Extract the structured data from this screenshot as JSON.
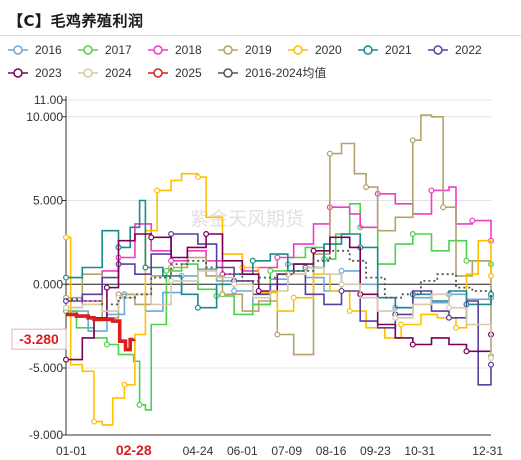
{
  "title": "【C】毛鸡养殖利润",
  "watermark": "紫金天风期货",
  "colors": {
    "2016": "#6fa8dc",
    "2017": "#4fd04f",
    "2018": "#f03cc4",
    "2019": "#b3a36b",
    "2020": "#ffc000",
    "2021": "#1b8a8a",
    "2022": "#5b3fa0",
    "2023": "#7a0058",
    "2024": "#d6c9a6",
    "2025": "#d81e1e",
    "2016-2024均值": "#555555"
  },
  "chart_data": {
    "type": "line",
    "title": "【C】毛鸡养殖利润",
    "xlabel": "",
    "ylabel": "",
    "x_range": [
      "01-01",
      "12-31"
    ],
    "x_ticks": [
      "01-01",
      "02-28",
      "04-24",
      "06-01",
      "07-09",
      "08-16",
      "09-23",
      "10-31",
      "12-31"
    ],
    "ylim": [
      -9,
      11
    ],
    "y_ticks": [
      11.0,
      10.0,
      5.0,
      0.0,
      -5.0,
      -9.0
    ],
    "y_tick_labels": [
      "11.00",
      "10.000",
      "5.000",
      "0.000",
      "-5.000",
      "-9.000"
    ],
    "grid": "horizontal",
    "legend_position": "top",
    "legend": [
      "2016",
      "2017",
      "2018",
      "2019",
      "2020",
      "2021",
      "2022",
      "2023",
      "2024",
      "2025",
      "2016-2024均值"
    ],
    "highlight_x_label": "02-28",
    "highlight_y_label": "-3.280",
    "series": [
      {
        "name": "2016",
        "style": "solid",
        "points": [
          [
            "01-01",
            -1.6
          ],
          [
            "01-20",
            -2.8
          ],
          [
            "02-05",
            -1.8
          ],
          [
            "02-20",
            -0.6
          ],
          [
            "03-10",
            -1.6
          ],
          [
            "03-25",
            -0.5
          ],
          [
            "04-10",
            0.5
          ],
          [
            "04-24",
            0.9
          ],
          [
            "05-10",
            0.2
          ],
          [
            "05-25",
            -0.4
          ],
          [
            "06-10",
            -1.2
          ],
          [
            "06-25",
            0.3
          ],
          [
            "07-10",
            1.2
          ],
          [
            "07-25",
            0.4
          ],
          [
            "08-10",
            -0.4
          ],
          [
            "08-25",
            0.8
          ],
          [
            "09-10",
            0.0
          ],
          [
            "09-25",
            -0.8
          ],
          [
            "10-10",
            -1.4
          ],
          [
            "10-25",
            -0.8
          ],
          [
            "11-10",
            -1.1
          ],
          [
            "11-25",
            -0.6
          ],
          [
            "12-10",
            -0.9
          ],
          [
            "12-31",
            -0.8
          ]
        ]
      },
      {
        "name": "2017",
        "style": "solid",
        "points": [
          [
            "01-01",
            -1.6
          ],
          [
            "01-10",
            -2.6
          ],
          [
            "01-25",
            -3.2
          ],
          [
            "02-05",
            -3.6
          ],
          [
            "02-15",
            -4.2
          ],
          [
            "02-28",
            -4.6
          ],
          [
            "03-05",
            -7.2
          ],
          [
            "03-10",
            -7.5
          ],
          [
            "03-15",
            -2.4
          ],
          [
            "03-28",
            0.8
          ],
          [
            "04-10",
            1.2
          ],
          [
            "04-24",
            -0.3
          ],
          [
            "05-10",
            -0.7
          ],
          [
            "05-25",
            -1.8
          ],
          [
            "06-10",
            -1.2
          ],
          [
            "06-25",
            0.8
          ],
          [
            "07-10",
            1.6
          ],
          [
            "07-25",
            2.2
          ],
          [
            "08-10",
            1.5
          ],
          [
            "08-20",
            3.0
          ],
          [
            "09-01",
            4.8
          ],
          [
            "09-10",
            3.4
          ],
          [
            "09-25",
            1.2
          ],
          [
            "10-10",
            2.4
          ],
          [
            "10-25",
            3.0
          ],
          [
            "11-10",
            2.0
          ],
          [
            "11-25",
            2.6
          ],
          [
            "12-10",
            1.4
          ],
          [
            "12-31",
            1.2
          ]
        ]
      },
      {
        "name": "2018",
        "style": "solid",
        "points": [
          [
            "01-01",
            -1.4
          ],
          [
            "01-15",
            -1.0
          ],
          [
            "02-01",
            0.8
          ],
          [
            "02-15",
            1.6
          ],
          [
            "03-01",
            3.6
          ],
          [
            "03-15",
            2.0
          ],
          [
            "04-01",
            1.4
          ],
          [
            "04-15",
            2.0
          ],
          [
            "05-01",
            1.4
          ],
          [
            "05-15",
            0.6
          ],
          [
            "06-01",
            0.8
          ],
          [
            "06-15",
            1.0
          ],
          [
            "07-01",
            1.6
          ],
          [
            "07-15",
            2.4
          ],
          [
            "08-01",
            3.6
          ],
          [
            "08-15",
            4.6
          ],
          [
            "09-01",
            4.2
          ],
          [
            "09-10",
            3.4
          ],
          [
            "09-25",
            5.4
          ],
          [
            "10-10",
            4.8
          ],
          [
            "10-25",
            4.2
          ],
          [
            "11-10",
            5.6
          ],
          [
            "11-25",
            5.8
          ],
          [
            "12-01",
            3.6
          ],
          [
            "12-15",
            3.8
          ],
          [
            "12-31",
            2.6
          ]
        ]
      },
      {
        "name": "2019",
        "style": "solid",
        "points": [
          [
            "01-01",
            -0.8
          ],
          [
            "01-15",
            0.6
          ],
          [
            "02-01",
            -2.0
          ],
          [
            "02-15",
            -0.6
          ],
          [
            "03-01",
            -1.2
          ],
          [
            "03-15",
            0.5
          ],
          [
            "04-01",
            1.0
          ],
          [
            "04-15",
            1.6
          ],
          [
            "05-01",
            0.5
          ],
          [
            "05-15",
            -0.6
          ],
          [
            "06-01",
            -1.6
          ],
          [
            "06-15",
            -1.0
          ],
          [
            "07-01",
            -3.0
          ],
          [
            "07-15",
            -4.2
          ],
          [
            "08-01",
            1.8
          ],
          [
            "08-15",
            7.8
          ],
          [
            "08-25",
            8.4
          ],
          [
            "09-05",
            6.6
          ],
          [
            "09-15",
            5.8
          ],
          [
            "09-25",
            3.2
          ],
          [
            "10-10",
            4.0
          ],
          [
            "10-25",
            8.6
          ],
          [
            "11-01",
            10.1
          ],
          [
            "11-10",
            10.0
          ],
          [
            "11-20",
            4.6
          ],
          [
            "12-01",
            0.5
          ],
          [
            "12-15",
            1.4
          ],
          [
            "12-31",
            -4.3
          ]
        ]
      },
      {
        "name": "2020",
        "style": "solid",
        "points": [
          [
            "01-01",
            2.8
          ],
          [
            "01-05",
            -4.8
          ],
          [
            "01-15",
            -5.2
          ],
          [
            "01-25",
            -8.2
          ],
          [
            "02-01",
            -8.4
          ],
          [
            "02-10",
            -6.8
          ],
          [
            "02-20",
            -6.0
          ],
          [
            "03-01",
            -3.0
          ],
          [
            "03-10",
            3.2
          ],
          [
            "03-20",
            5.6
          ],
          [
            "04-01",
            6.2
          ],
          [
            "04-10",
            6.6
          ],
          [
            "04-24",
            6.4
          ],
          [
            "05-01",
            4.0
          ],
          [
            "05-15",
            1.8
          ],
          [
            "06-01",
            1.0
          ],
          [
            "06-15",
            -0.5
          ],
          [
            "07-01",
            -1.6
          ],
          [
            "07-15",
            -0.8
          ],
          [
            "08-01",
            0.6
          ],
          [
            "08-15",
            -0.4
          ],
          [
            "09-01",
            -1.6
          ],
          [
            "09-15",
            -2.6
          ],
          [
            "10-01",
            -3.2
          ],
          [
            "10-15",
            -2.4
          ],
          [
            "11-01",
            -1.8
          ],
          [
            "11-15",
            -2.0
          ],
          [
            "12-01",
            -2.6
          ],
          [
            "12-10",
            0.6
          ],
          [
            "12-20",
            2.6
          ],
          [
            "12-31",
            0.5
          ]
        ]
      },
      {
        "name": "2021",
        "style": "solid",
        "points": [
          [
            "01-01",
            0.4
          ],
          [
            "01-15",
            1.0
          ],
          [
            "02-01",
            3.2
          ],
          [
            "02-15",
            2.2
          ],
          [
            "02-25",
            3.4
          ],
          [
            "03-05",
            5.0
          ],
          [
            "03-10",
            1.0
          ],
          [
            "03-25",
            0.5
          ],
          [
            "04-10",
            -0.6
          ],
          [
            "04-24",
            -1.4
          ],
          [
            "05-10",
            0.0
          ],
          [
            "05-25",
            0.6
          ],
          [
            "06-10",
            1.4
          ],
          [
            "06-25",
            1.8
          ],
          [
            "07-10",
            0.8
          ],
          [
            "07-25",
            1.0
          ],
          [
            "08-10",
            2.4
          ],
          [
            "08-25",
            3.0
          ],
          [
            "09-10",
            2.2
          ],
          [
            "09-25",
            -0.8
          ],
          [
            "10-10",
            -1.4
          ],
          [
            "10-25",
            -0.6
          ],
          [
            "11-10",
            -1.0
          ],
          [
            "11-25",
            -0.4
          ],
          [
            "12-10",
            -1.2
          ],
          [
            "12-31",
            -0.6
          ]
        ]
      },
      {
        "name": "2022",
        "style": "solid",
        "points": [
          [
            "01-01",
            -1.0
          ],
          [
            "01-15",
            -0.6
          ],
          [
            "02-01",
            0.4
          ],
          [
            "02-15",
            1.2
          ],
          [
            "03-01",
            0.6
          ],
          [
            "03-15",
            1.8
          ],
          [
            "04-01",
            3.0
          ],
          [
            "04-24",
            2.4
          ],
          [
            "05-10",
            1.0
          ],
          [
            "05-25",
            0.2
          ],
          [
            "06-10",
            -0.6
          ],
          [
            "06-25",
            0.0
          ],
          [
            "07-10",
            0.6
          ],
          [
            "07-25",
            -0.6
          ],
          [
            "08-10",
            -1.2
          ],
          [
            "08-25",
            -0.4
          ],
          [
            "09-10",
            -2.2
          ],
          [
            "09-25",
            -2.6
          ],
          [
            "10-10",
            -1.8
          ],
          [
            "10-25",
            -0.4
          ],
          [
            "11-10",
            -1.6
          ],
          [
            "11-25",
            -2.0
          ],
          [
            "12-10",
            -1.0
          ],
          [
            "12-20",
            -6.0
          ],
          [
            "12-31",
            -4.8
          ]
        ]
      },
      {
        "name": "2023",
        "style": "solid",
        "points": [
          [
            "01-01",
            -4.5
          ],
          [
            "01-15",
            -3.2
          ],
          [
            "01-25",
            -2.0
          ],
          [
            "02-05",
            -0.2
          ],
          [
            "02-15",
            2.6
          ],
          [
            "03-01",
            3.0
          ],
          [
            "03-15",
            2.8
          ],
          [
            "04-01",
            1.6
          ],
          [
            "04-15",
            2.2
          ],
          [
            "05-01",
            3.0
          ],
          [
            "05-15",
            1.4
          ],
          [
            "06-01",
            0.6
          ],
          [
            "06-15",
            -0.4
          ],
          [
            "07-01",
            0.6
          ],
          [
            "07-15",
            1.2
          ],
          [
            "08-01",
            2.0
          ],
          [
            "08-15",
            2.8
          ],
          [
            "09-01",
            2.2
          ],
          [
            "09-10",
            -0.6
          ],
          [
            "09-25",
            -2.4
          ],
          [
            "10-10",
            -3.2
          ],
          [
            "10-25",
            -3.6
          ],
          [
            "11-10",
            -3.2
          ],
          [
            "11-25",
            -3.6
          ],
          [
            "12-10",
            -4.0
          ],
          [
            "12-31",
            -3.0
          ]
        ]
      },
      {
        "name": "2024",
        "style": "solid",
        "points": [
          [
            "01-01",
            -1.4
          ],
          [
            "01-15",
            -1.2
          ],
          [
            "02-01",
            -1.6
          ],
          [
            "02-15",
            -0.8
          ],
          [
            "03-01",
            -0.6
          ],
          [
            "03-15",
            -1.2
          ],
          [
            "04-01",
            0.2
          ],
          [
            "04-24",
            0.8
          ],
          [
            "05-10",
            0.4
          ],
          [
            "05-25",
            0.0
          ],
          [
            "06-10",
            -0.8
          ],
          [
            "06-25",
            -0.4
          ],
          [
            "07-10",
            0.6
          ],
          [
            "07-25",
            1.0
          ],
          [
            "08-10",
            0.6
          ],
          [
            "08-25",
            0.0
          ],
          [
            "09-10",
            -0.8
          ],
          [
            "09-25",
            -1.6
          ],
          [
            "10-10",
            -2.0
          ],
          [
            "10-25",
            -1.2
          ],
          [
            "11-10",
            -0.6
          ],
          [
            "11-25",
            -1.4
          ],
          [
            "12-10",
            -2.4
          ],
          [
            "12-31",
            -4.4
          ]
        ]
      },
      {
        "name": "2025",
        "style": "bold",
        "points": [
          [
            "01-01",
            -1.8
          ],
          [
            "01-10",
            -1.9
          ],
          [
            "01-20",
            -2.0
          ],
          [
            "01-25",
            -2.1
          ],
          [
            "02-01",
            -2.1
          ],
          [
            "02-10",
            -2.2
          ],
          [
            "02-15",
            -2.2
          ],
          [
            "02-16",
            -3.4
          ],
          [
            "02-20",
            -3.4
          ],
          [
            "02-21",
            -3.9
          ],
          [
            "02-24",
            -3.9
          ],
          [
            "02-25",
            -3.3
          ],
          [
            "02-28",
            -3.28
          ]
        ]
      },
      {
        "name": "2016-2024均值",
        "style": "dotted",
        "points": [
          [
            "01-01",
            -0.9
          ],
          [
            "01-15",
            -1.0
          ],
          [
            "02-01",
            -1.2
          ],
          [
            "02-15",
            -0.8
          ],
          [
            "03-01",
            -0.6
          ],
          [
            "03-15",
            0.4
          ],
          [
            "04-01",
            1.2
          ],
          [
            "04-15",
            1.4
          ],
          [
            "05-01",
            1.0
          ],
          [
            "05-15",
            0.6
          ],
          [
            "06-01",
            0.2
          ],
          [
            "06-15",
            0.4
          ],
          [
            "07-01",
            0.6
          ],
          [
            "07-15",
            0.8
          ],
          [
            "08-01",
            1.4
          ],
          [
            "08-15",
            2.0
          ],
          [
            "09-01",
            1.4
          ],
          [
            "09-15",
            0.4
          ],
          [
            "10-01",
            -0.8
          ],
          [
            "10-15",
            -0.6
          ],
          [
            "11-01",
            0.2
          ],
          [
            "11-15",
            0.6
          ],
          [
            "12-01",
            -0.2
          ],
          [
            "12-15",
            -0.4
          ],
          [
            "12-31",
            -0.9
          ]
        ]
      }
    ]
  }
}
